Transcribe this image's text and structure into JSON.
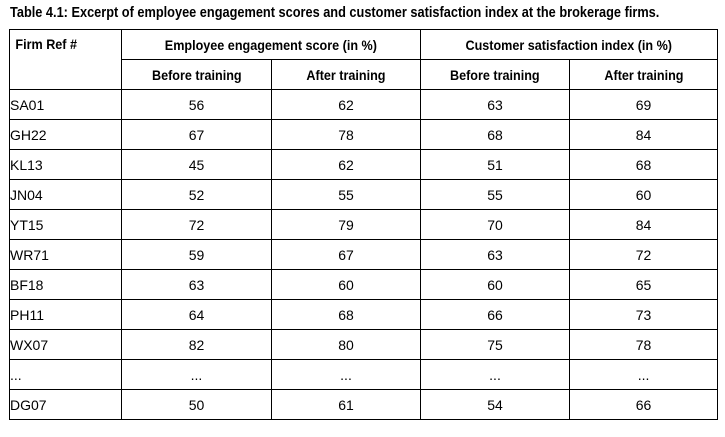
{
  "caption": "Table 4.1: Excerpt of employee engagement scores and customer satisfaction index at the brokerage firms.",
  "header": {
    "firm_ref": "Firm Ref #",
    "engagement": "Employee engagement score (in %)",
    "satisfaction": "Customer satisfaction index (in %)",
    "before": "Before training",
    "after": "After training"
  },
  "rows": [
    {
      "firm": "SA01",
      "eng_before": "56",
      "eng_after": "62",
      "sat_before": "63",
      "sat_after": "69"
    },
    {
      "firm": "GH22",
      "eng_before": "67",
      "eng_after": "78",
      "sat_before": "68",
      "sat_after": "84"
    },
    {
      "firm": "KL13",
      "eng_before": "45",
      "eng_after": "62",
      "sat_before": "51",
      "sat_after": "68"
    },
    {
      "firm": "JN04",
      "eng_before": "52",
      "eng_after": "55",
      "sat_before": "55",
      "sat_after": "60"
    },
    {
      "firm": "YT15",
      "eng_before": "72",
      "eng_after": "79",
      "sat_before": "70",
      "sat_after": "84"
    },
    {
      "firm": "WR71",
      "eng_before": "59",
      "eng_after": "67",
      "sat_before": "63",
      "sat_after": "72"
    },
    {
      "firm": "BF18",
      "eng_before": "63",
      "eng_after": "60",
      "sat_before": "60",
      "sat_after": "65"
    },
    {
      "firm": "PH11",
      "eng_before": "64",
      "eng_after": "68",
      "sat_before": "66",
      "sat_after": "73"
    },
    {
      "firm": "WX07",
      "eng_before": "82",
      "eng_after": "80",
      "sat_before": "75",
      "sat_after": "78"
    },
    {
      "firm": "...",
      "eng_before": "...",
      "eng_after": "...",
      "sat_before": "...",
      "sat_after": "..."
    },
    {
      "firm": "DG07",
      "eng_before": "50",
      "eng_after": "61",
      "sat_before": "54",
      "sat_after": "66"
    }
  ]
}
